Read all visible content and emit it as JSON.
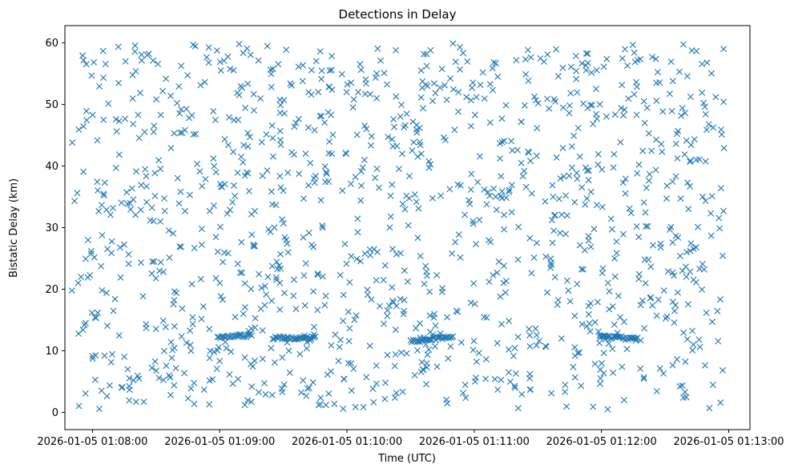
{
  "chart_data": {
    "type": "scatter",
    "title": "Detections in Delay",
    "xlabel": "Time (UTC)",
    "ylabel": "Bistatic Delay (km)",
    "marker": "x",
    "marker_color": "#1f77b4",
    "grid": false,
    "legend": "none",
    "xlim": [
      "2026-01-05 01:07:47",
      "2026-01-05 01:13:10"
    ],
    "ylim": [
      -2.8,
      62.8
    ],
    "x_ticks": [
      "2026-01-05 01:08:00",
      "2026-01-05 01:09:00",
      "2026-01-05 01:10:00",
      "2026-01-05 01:11:00",
      "2026-01-05 01:12:00",
      "2026-01-05 01:13:00"
    ],
    "y_ticks": [
      0,
      10,
      20,
      30,
      40,
      50,
      60
    ],
    "data_span": [
      "2026-01-05 01:07:50",
      "2026-01-05 01:12:58"
    ],
    "tracks": [
      {
        "start": "2026-01-05 01:08:59",
        "end": "2026-01-05 01:09:15",
        "delay": [
          12.2,
          12.5
        ]
      },
      {
        "start": "2026-01-05 01:09:25",
        "end": "2026-01-05 01:09:45",
        "delay": [
          12.1,
          12.1
        ]
      },
      {
        "start": "2026-01-05 01:10:30",
        "end": "2026-01-05 01:10:50",
        "delay": [
          11.5,
          12.3
        ]
      },
      {
        "start": "2026-01-05 01:12:00",
        "end": "2026-01-05 01:12:17",
        "delay": [
          12.3,
          11.9
        ]
      }
    ],
    "n_clutter_points": 1250
  }
}
